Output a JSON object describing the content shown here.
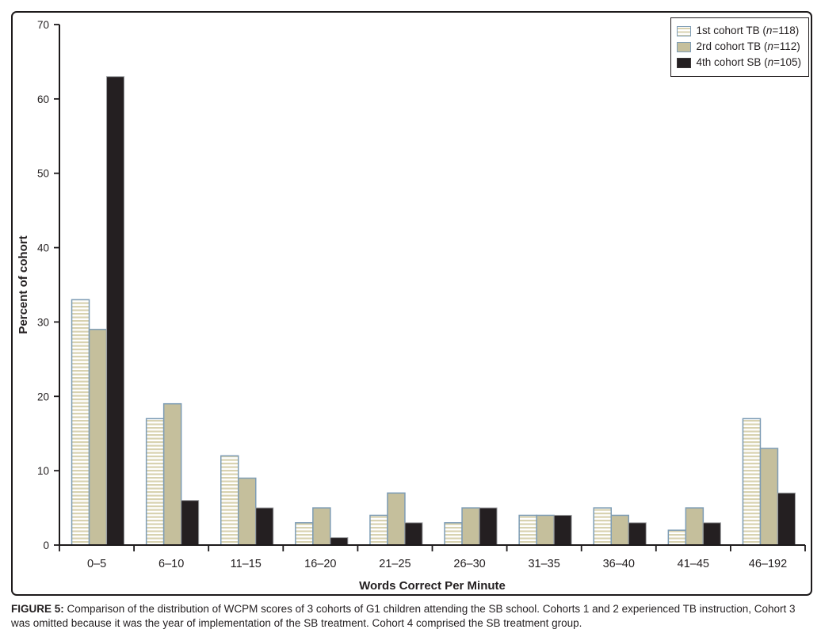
{
  "figure": {
    "caption_label": "FIGURE 5:",
    "caption_text": " Comparison of the distribution of WCPM scores of 3 cohorts of G1 children attending the SB school. Cohorts 1 and 2 experienced TB instruction, Cohort 3 was omitted because it was the year of implementation of the SB treatment. Cohort 4 comprised the SB treatment group."
  },
  "chart_data": {
    "type": "bar",
    "title": "",
    "xlabel": "Words Correct Per Minute",
    "ylabel": "Percent of cohort",
    "categories": [
      "0–5",
      "6–10",
      "11–15",
      "16–20",
      "21–25",
      "26–30",
      "31–35",
      "36–40",
      "41–45",
      "46–192"
    ],
    "series": [
      {
        "name": "1st cohort TB (n=118)",
        "style": "striped",
        "values": [
          33,
          17,
          12,
          3,
          4,
          3,
          4,
          5,
          2,
          17
        ]
      },
      {
        "name": "2rd cohort TB (n=112)",
        "style": "solid-tan",
        "values": [
          29,
          19,
          9,
          5,
          7,
          5,
          4,
          4,
          5,
          13
        ]
      },
      {
        "name": "4th cohort SB (n=105)",
        "style": "solid-black",
        "values": [
          63,
          6,
          5,
          1,
          3,
          5,
          4,
          3,
          3,
          7
        ]
      }
    ],
    "ylim": [
      0,
      70
    ],
    "yticks": [
      0,
      10,
      20,
      30,
      40,
      50,
      60,
      70
    ],
    "grid": false,
    "legend_position": "top-right",
    "colors": {
      "stripe_fill": "#ffffff",
      "stripe_line": "#d8d2b0",
      "stripe_border": "#7d9cb5",
      "tan_fill": "#c5bf9c",
      "tan_border": "#7d9cb5",
      "black_fill": "#241f21",
      "black_border": "#9b9da0",
      "axis": "#1d1a1b",
      "text": "#231f20"
    }
  }
}
